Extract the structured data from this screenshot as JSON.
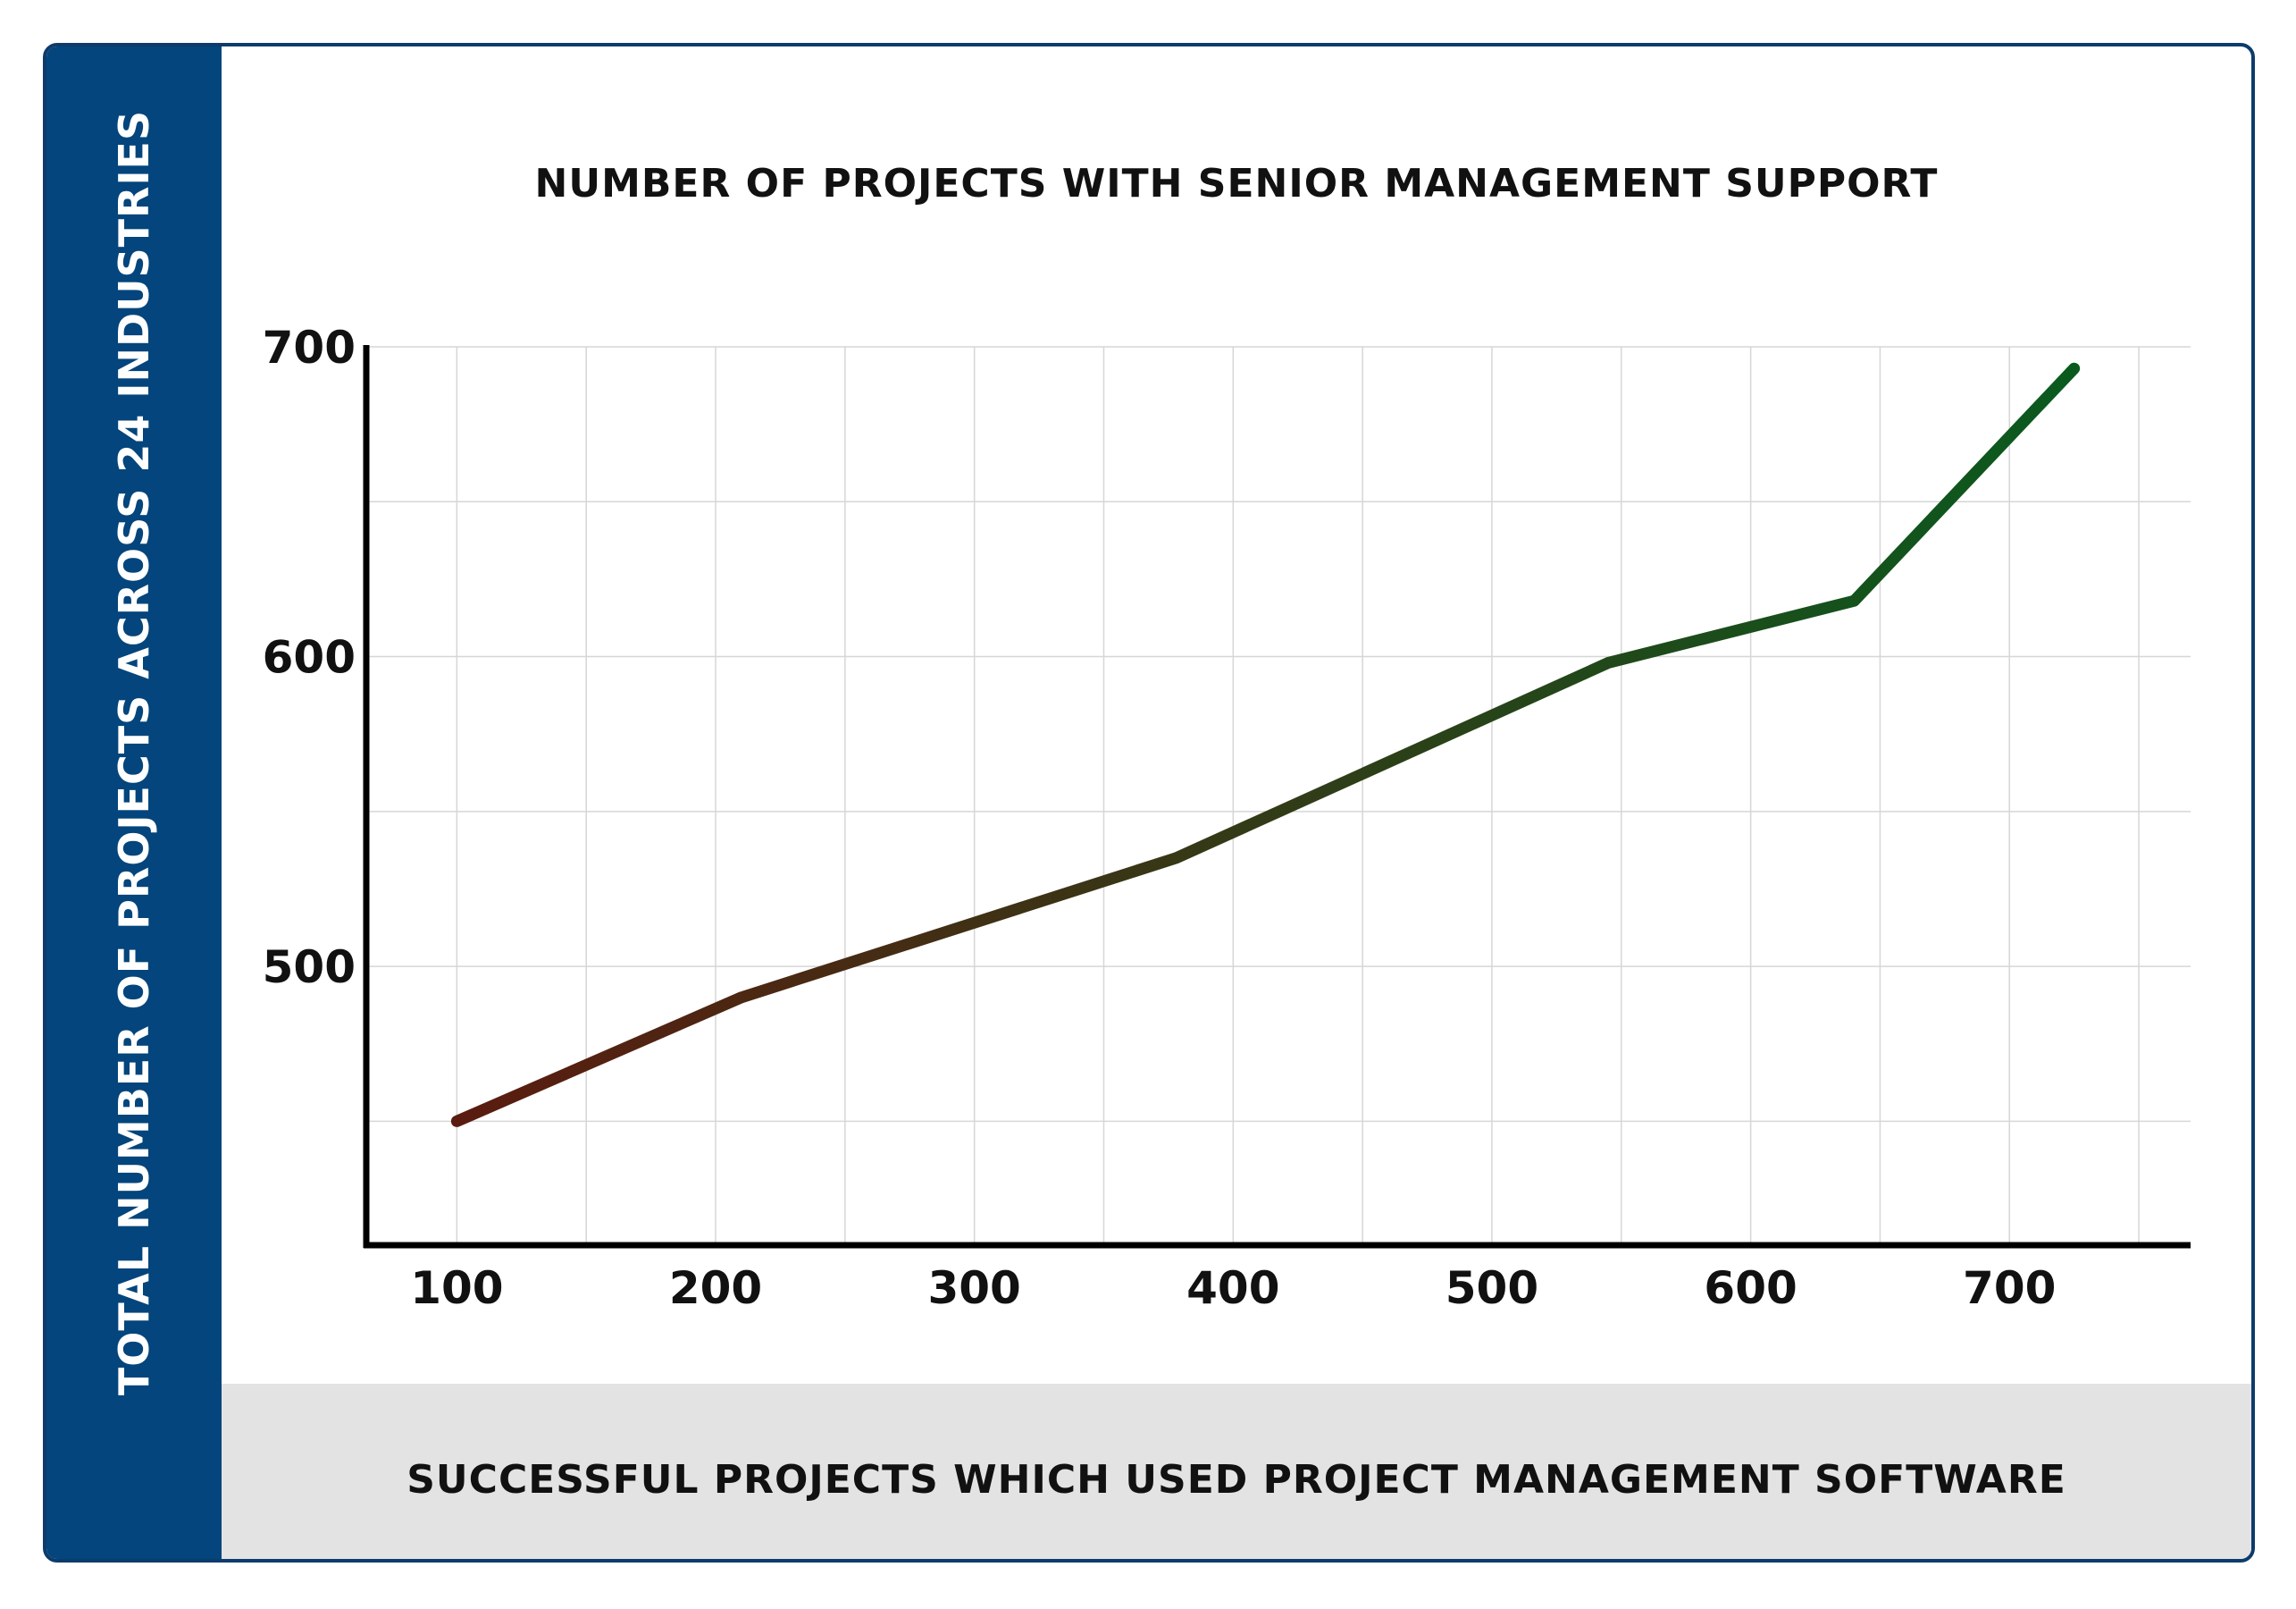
{
  "chart_data": {
    "type": "line",
    "title": "NUMBER OF PROJECTS WITH SENIOR MANAGEMENT SUPPORT",
    "xlabel": "SUCCESSFUL PROJECTS WHICH USED PROJECT MANAGEMENT SOFTWARE",
    "ylabel": "TOTAL NUMBER OF PROJECTS ACROSS 24 INDUSTRIES",
    "x_ticks": [
      100,
      200,
      300,
      400,
      500,
      600,
      700
    ],
    "y_ticks": [
      500,
      600,
      700
    ],
    "xlim": [
      65,
      770
    ],
    "ylim": [
      410,
      700
    ],
    "grid": true,
    "series": [
      {
        "x": [
          100,
          210,
          378,
          545,
          640,
          725
        ],
        "y": [
          450,
          490,
          535,
          598,
          618,
          693
        ]
      }
    ],
    "line_gradient": [
      "#5a1c10",
      "#0a5a1e"
    ]
  }
}
